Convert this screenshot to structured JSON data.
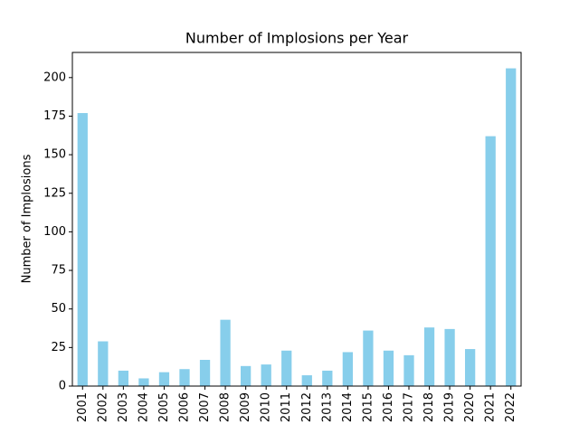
{
  "chart_data": {
    "type": "bar",
    "title": "Number of Implosions per Year",
    "y_label": "Number of Implosions",
    "categories": [
      "2001",
      "2002",
      "2003",
      "2004",
      "2005",
      "2006",
      "2007",
      "2008",
      "2009",
      "2010",
      "2011",
      "2012",
      "2013",
      "2014",
      "2015",
      "2016",
      "2017",
      "2018",
      "2019",
      "2020",
      "2021",
      "2022"
    ],
    "values": [
      177,
      29,
      10,
      5,
      9,
      11,
      17,
      43,
      13,
      14,
      23,
      7,
      10,
      22,
      36,
      23,
      20,
      38,
      37,
      24,
      162,
      206
    ],
    "color": "#87ceeb",
    "ylim": [
      0,
      216.3
    ],
    "yticks": [
      0,
      25,
      50,
      75,
      100,
      125,
      150,
      175,
      200
    ],
    "grid": false
  }
}
